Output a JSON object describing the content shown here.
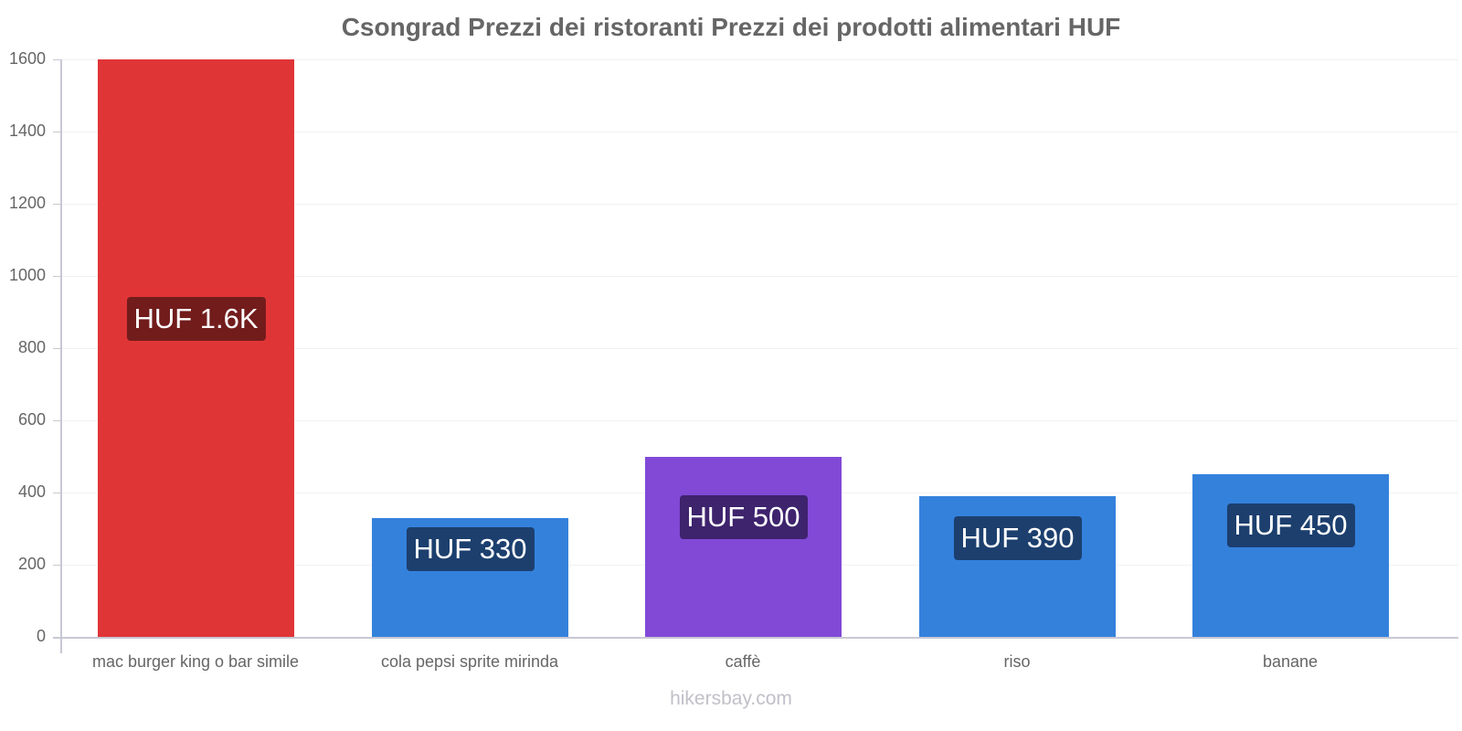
{
  "chart_data": {
    "type": "bar",
    "title": "Csongrad Prezzi dei ristoranti Prezzi dei prodotti alimentari HUF",
    "xlabel": "",
    "ylabel": "",
    "ylim": [
      0,
      1600
    ],
    "yticks": [
      0,
      200,
      400,
      600,
      800,
      1000,
      1200,
      1400,
      1600
    ],
    "ytick_labels": [
      "0",
      "200",
      "400",
      "600",
      "800",
      "1000",
      "1200",
      "1400",
      "1600"
    ],
    "grid": true,
    "legend": null,
    "categories": [
      "mac burger king o bar simile",
      "cola pepsi sprite mirinda",
      "caffè",
      "riso",
      "banane"
    ],
    "values": [
      1600,
      330,
      500,
      390,
      450
    ],
    "data_labels": [
      "HUF 1.6K",
      "HUF 330",
      "HUF 500",
      "HUF 390",
      "HUF 450"
    ],
    "bar_colors": [
      "#e03537",
      "#3481dc",
      "#8149d6",
      "#3481dc",
      "#3481dc"
    ],
    "label_colors": [
      "#721c1c",
      "#1c3f6e",
      "#3e236d",
      "#1c3f6e",
      "#1c3f6e"
    ]
  },
  "watermark": "hikersbay.com"
}
